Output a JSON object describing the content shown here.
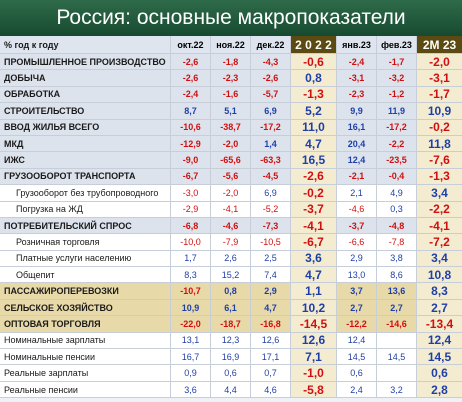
{
  "title": "Россия: основные макропоказатели",
  "table": {
    "header": [
      "% год к году",
      "окт.22",
      "ноя.22",
      "дек.22",
      "2 0 2 2",
      "янв.23",
      "фев.23",
      "2М 23"
    ],
    "rows": [
      [
        "ПРОМЫШЛЕННОЕ ПРОИЗВОДСТВО",
        "-2,6",
        "-1,8",
        "-4,3",
        "-0,6",
        "-2,4",
        "-1,7",
        "-2,0"
      ],
      [
        "ДОБЫЧА",
        "-2,6",
        "-2,3",
        "-2,6",
        "0,8",
        "-3,1",
        "-3,2",
        "-3,1"
      ],
      [
        "ОБРАБОТКА",
        "-2,4",
        "-1,6",
        "-5,7",
        "-1,3",
        "-2,3",
        "-1,2",
        "-1,7"
      ],
      [
        "СТРОИТЕЛЬСТВО",
        "8,7",
        "5,1",
        "6,9",
        "5,2",
        "9,9",
        "11,9",
        "10,9"
      ],
      [
        "ВВОД ЖИЛЬЯ ВСЕГО",
        "-10,6",
        "-38,7",
        "-17,2",
        "11,0",
        "16,1",
        "-17,2",
        "-0,2"
      ],
      [
        "МКД",
        "-12,9",
        "-2,0",
        "1,4",
        "4,7",
        "20,4",
        "-2,2",
        "11,8"
      ],
      [
        "ИЖС",
        "-9,0",
        "-65,6",
        "-63,3",
        "16,5",
        "12,4",
        "-23,5",
        "-7,6"
      ],
      [
        "ГРУЗООБОРОТ ТРАНСПОРТА",
        "-6,7",
        "-5,6",
        "-4,5",
        "-2,6",
        "-2,1",
        "-0,4",
        "-1,3"
      ],
      [
        "Грузооборот без трубопроводного",
        "-3,0",
        "-2,0",
        "6,9",
        "-0,2",
        "2,1",
        "4,9",
        "3,4"
      ],
      [
        "Погрузка на ЖД",
        "-2,9",
        "-4,1",
        "-5,2",
        "-3,7",
        "-4,6",
        "0,3",
        "-2,2"
      ],
      [
        "ПОТРЕБИТЕЛЬСКИЙ СПРОС",
        "-6,8",
        "-4,6",
        "-7,3",
        "-4,1",
        "-3,7",
        "-4,8",
        "-4,1"
      ],
      [
        "Розничная торговля",
        "-10,0",
        "-7,9",
        "-10,5",
        "-6,7",
        "-6,6",
        "-7,8",
        "-7,2"
      ],
      [
        "Платные услуги населению",
        "1,7",
        "2,6",
        "2,5",
        "3,6",
        "2,9",
        "3,8",
        "3,4"
      ],
      [
        "Общепит",
        "8,3",
        "15,2",
        "7,4",
        "4,7",
        "13,0",
        "8,6",
        "10,8"
      ],
      [
        "ПАССАЖИРОПЕРЕВОЗКИ",
        "-10,7",
        "0,8",
        "2,9",
        "1,1",
        "3,7",
        "13,6",
        "8,3"
      ],
      [
        "СЕЛЬСКОЕ ХОЗЯЙСТВО",
        "10,9",
        "6,1",
        "4,7",
        "10,2",
        "2,7",
        "2,7",
        "2,7"
      ],
      [
        "ОПТОВАЯ ТОРГОВЛЯ",
        "-22,0",
        "-18,7",
        "-16,8",
        "-14,5",
        "-12,2",
        "-14,6",
        "-13,4"
      ],
      [
        "Номинальные зарплаты",
        "13,1",
        "12,3",
        "12,6",
        "12,6",
        "12,4",
        null,
        "12,4"
      ],
      [
        "Номинальные пенсии",
        "16,7",
        "16,9",
        "17,1",
        "7,1",
        "14,5",
        "14,5",
        "14,5"
      ],
      [
        "Реальные зарплаты",
        "0,9",
        "0,6",
        "0,7",
        "-1,0",
        "0,6",
        null,
        "0,6"
      ],
      [
        "Реальные пенсии",
        "3,6",
        "4,4",
        "4,6",
        "-5,8",
        "2,4",
        "3,2",
        "2,8"
      ]
    ]
  }
}
